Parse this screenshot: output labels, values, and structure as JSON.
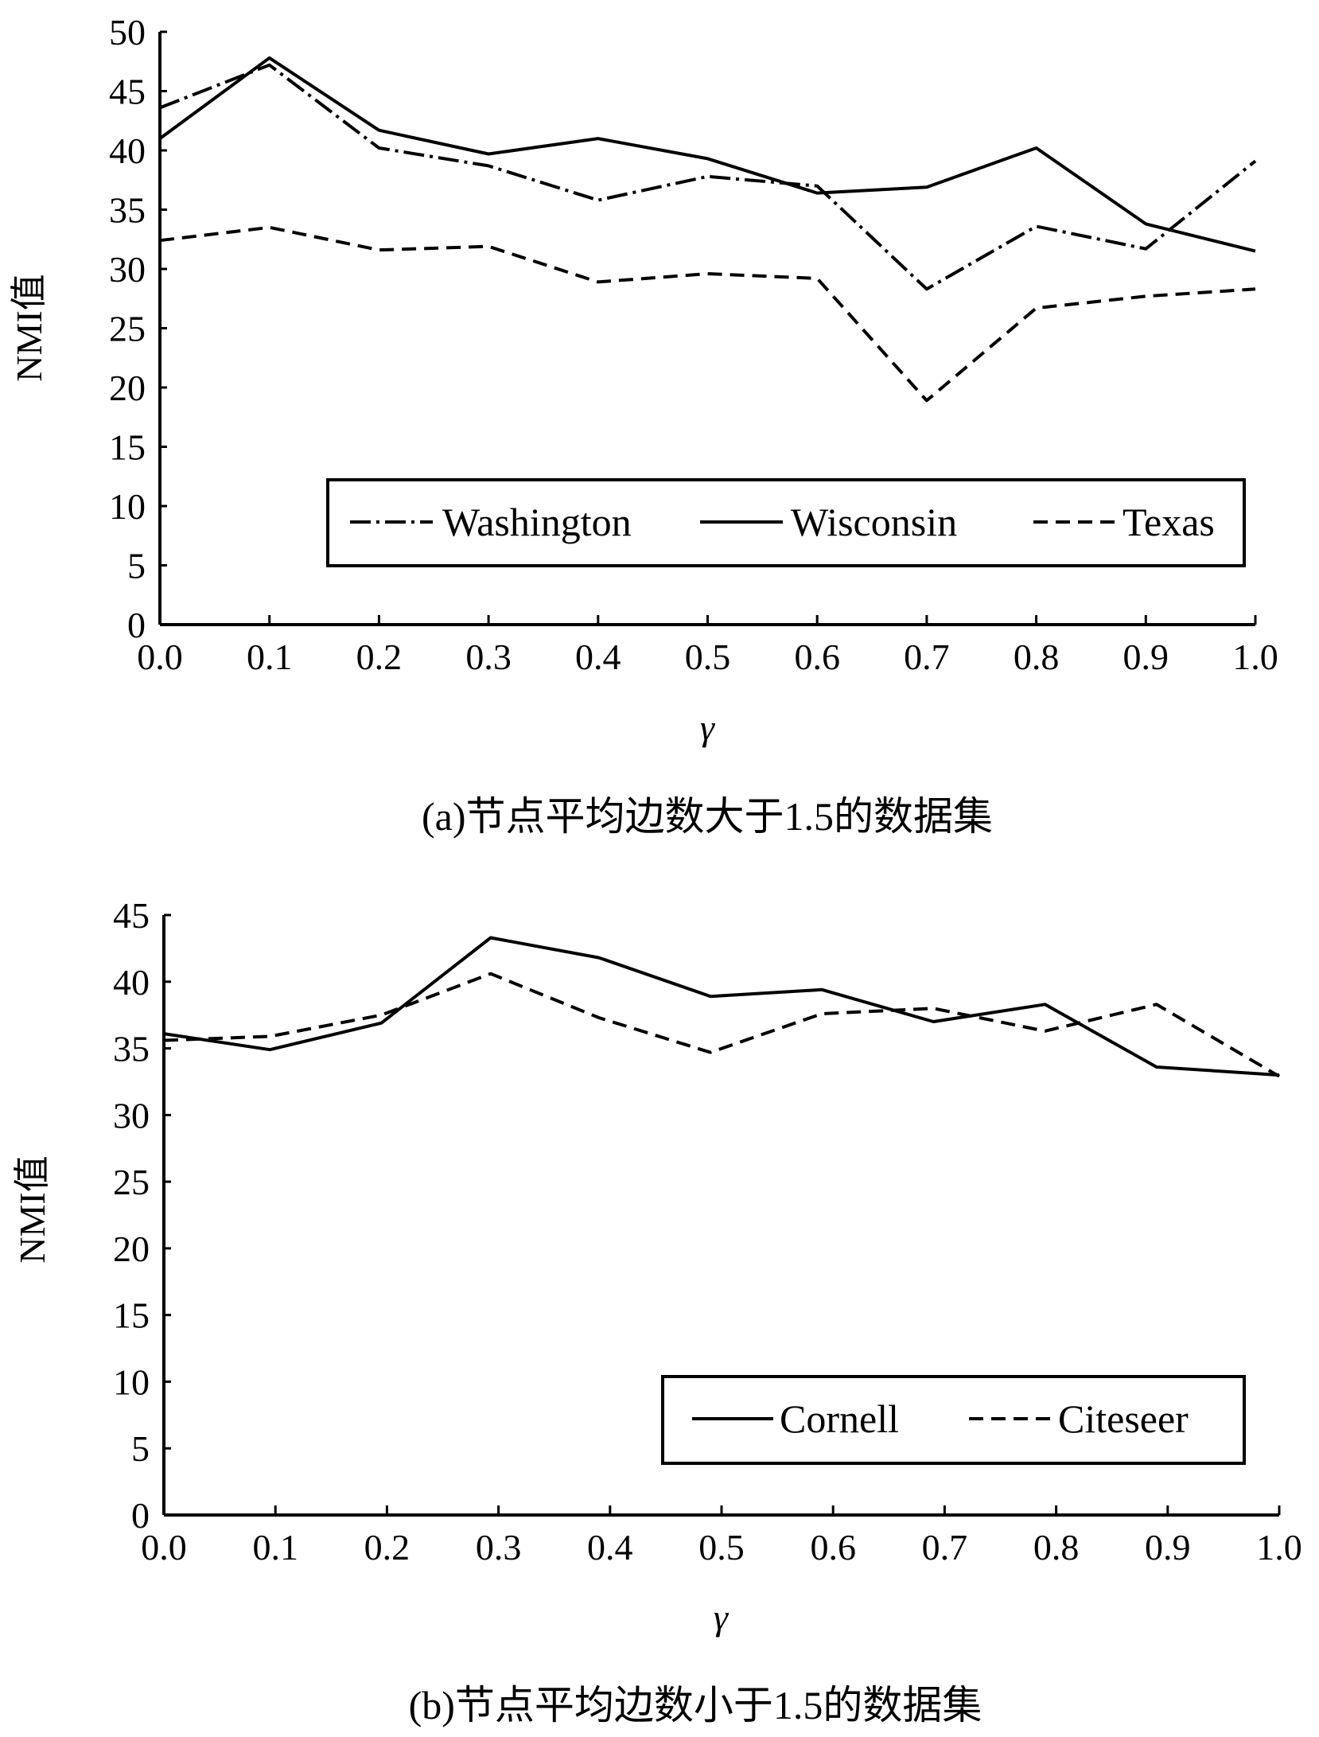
{
  "chart_data": [
    {
      "type": "line",
      "caption": "(a)节点平均边数大于1.5的数据集",
      "xlabel": "γ",
      "ylabel": "NMI值",
      "x": [
        0.0,
        0.1,
        0.2,
        0.3,
        0.4,
        0.5,
        0.6,
        0.7,
        0.8,
        0.9,
        1.0
      ],
      "x_tick_labels": [
        "0.0",
        "0.1",
        "0.2",
        "0.3",
        "0.4",
        "0.5",
        "0.6",
        "0.7",
        "0.8",
        "0.9",
        "1.0"
      ],
      "xlim": [
        0.0,
        1.0
      ],
      "ylim": [
        0,
        50
      ],
      "y_ticks": [
        0,
        5,
        10,
        15,
        20,
        25,
        30,
        35,
        40,
        45,
        50
      ],
      "grid": false,
      "legend_position": "bottom-right",
      "series": [
        {
          "name": "Washington",
          "style": "dashdot",
          "values": [
            43.6,
            47.2,
            40.2,
            38.7,
            35.8,
            37.8,
            37.0,
            28.3,
            33.6,
            31.7,
            39.1
          ]
        },
        {
          "name": "Wisconsin",
          "style": "solid",
          "values": [
            41.0,
            47.8,
            41.7,
            39.7,
            41.0,
            39.3,
            36.4,
            36.9,
            40.2,
            33.8,
            31.5
          ]
        },
        {
          "name": "Texas",
          "style": "dashed",
          "values": [
            32.4,
            33.5,
            31.6,
            31.9,
            28.9,
            29.6,
            29.2,
            18.9,
            26.7,
            27.7,
            28.3
          ]
        }
      ]
    },
    {
      "type": "line",
      "caption": "(b)节点平均边数小于1.5的数据集",
      "xlabel": "γ",
      "ylabel": "NMI值",
      "x": [
        0.0,
        0.1,
        0.2,
        0.3,
        0.4,
        0.5,
        0.6,
        0.7,
        0.8,
        0.9,
        1.0
      ],
      "x_tick_labels": [
        "0.0",
        "0.1",
        "0.2",
        "0.3",
        "0.4",
        "0.5",
        "0.6",
        "0.7",
        "0.8",
        "0.9",
        "1.0"
      ],
      "xlim": [
        0.0,
        1.0
      ],
      "ylim": [
        0,
        45
      ],
      "y_ticks": [
        0,
        5,
        10,
        15,
        20,
        25,
        30,
        35,
        40,
        45
      ],
      "grid": false,
      "legend_position": "bottom-right",
      "series": [
        {
          "name": "Cornell",
          "style": "solid",
          "x": [
            0.0,
            0.095,
            0.195,
            0.293,
            0.39,
            0.49,
            0.59,
            0.69,
            0.79,
            0.89,
            1.0
          ],
          "values": [
            36.1,
            34.9,
            36.9,
            43.3,
            41.8,
            38.9,
            39.4,
            37.0,
            38.3,
            33.6,
            33.0
          ]
        },
        {
          "name": "Citeseer",
          "style": "dashed",
          "x": [
            0.0,
            0.095,
            0.195,
            0.293,
            0.39,
            0.49,
            0.59,
            0.69,
            0.79,
            0.89,
            1.0
          ],
          "values": [
            35.6,
            35.9,
            37.5,
            40.6,
            37.3,
            34.7,
            37.6,
            38.0,
            36.3,
            38.3,
            32.9
          ]
        }
      ]
    }
  ]
}
